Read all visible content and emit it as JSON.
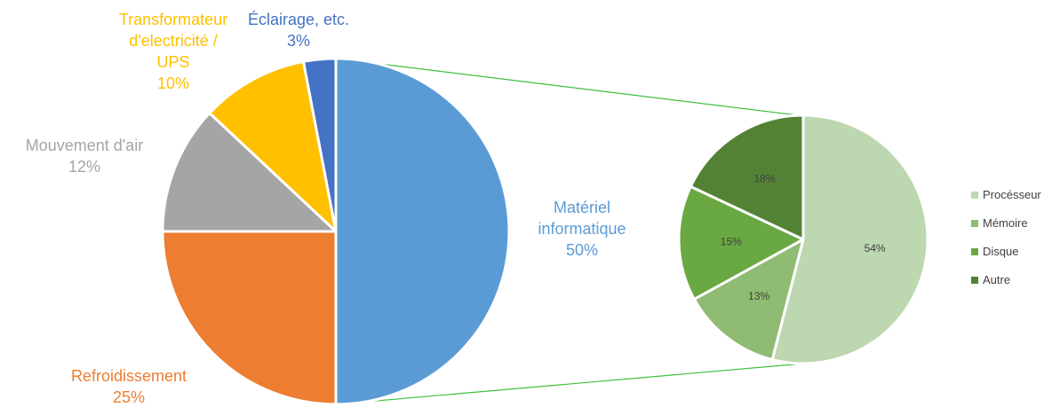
{
  "chart_data": [
    {
      "type": "pie",
      "title": "",
      "slices": [
        {
          "label_lines": [
            "Matériel",
            "informatique"
          ],
          "percent_label": "50%",
          "value": 50,
          "color": "#5b9bd5"
        },
        {
          "label_lines": [
            "Refroidissement"
          ],
          "percent_label": "25%",
          "value": 25,
          "color": "#ed7d31"
        },
        {
          "label_lines": [
            "Mouvement d'air"
          ],
          "percent_label": "12%",
          "value": 12,
          "color": "#a5a5a5"
        },
        {
          "label_lines": [
            "Transformateur",
            "d'electricité /",
            "UPS"
          ],
          "percent_label": "10%",
          "value": 10,
          "color": "#ffc000"
        },
        {
          "label_lines": [
            "Éclairage, etc."
          ],
          "percent_label": "3%",
          "value": 3,
          "color": "#4472c4"
        }
      ]
    },
    {
      "type": "pie",
      "title": "",
      "breakdown_of": "Matériel informatique",
      "slices": [
        {
          "label": "Procésseur",
          "percent_label": "54%",
          "value": 54,
          "color": "#bdd7b0"
        },
        {
          "label": "Mémoire",
          "percent_label": "13%",
          "value": 13,
          "color": "#8fbb72"
        },
        {
          "label": "Disque",
          "percent_label": "15%",
          "value": 15,
          "color": "#6aa843"
        },
        {
          "label": "Autre",
          "percent_label": "18%",
          "value": 18,
          "color": "#548235"
        }
      ],
      "legend": {
        "position": "right",
        "entries": [
          "Procésseur",
          "Mémoire",
          "Disque",
          "Autre"
        ]
      }
    }
  ],
  "connector_color": "#3fc03f"
}
